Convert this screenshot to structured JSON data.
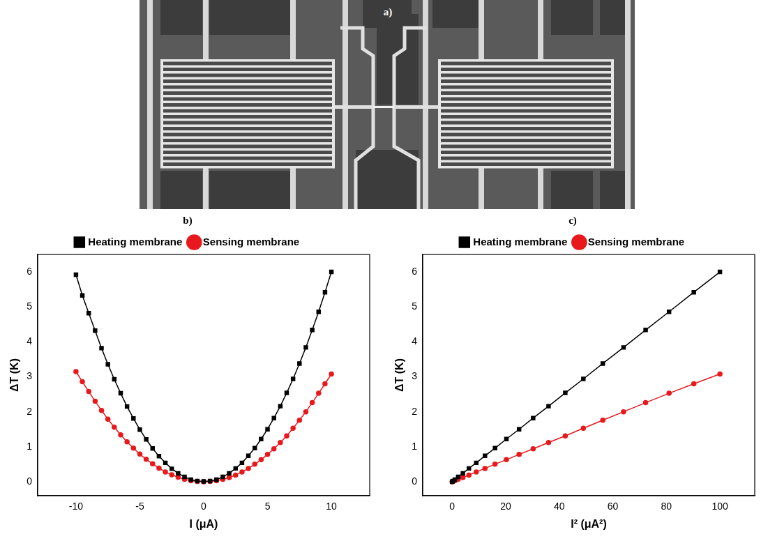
{
  "image": {
    "label": "a)"
  },
  "chart_data": [
    {
      "type": "line",
      "title": "b)",
      "x_label": "I (μA)",
      "y_label": "ΔT (K)",
      "x": [
        -10,
        -9.5,
        -9,
        -8.5,
        -8,
        -7.5,
        -7,
        -6.5,
        -6,
        -5.5,
        -5,
        -4.5,
        -4,
        -3.5,
        -3,
        -2.5,
        -2,
        -1.5,
        -1,
        -0.5,
        0,
        0.5,
        1,
        1.5,
        2,
        2.5,
        3,
        3.5,
        4,
        4.5,
        5,
        5.5,
        6,
        6.5,
        7,
        7.5,
        8,
        8.5,
        9,
        9.5,
        10
      ],
      "series": [
        {
          "name": "Heating membrane",
          "color": "#000000",
          "marker": "square",
          "line_style": "solid",
          "values": [
            5.92,
            5.33,
            4.82,
            4.32,
            3.82,
            3.36,
            2.93,
            2.53,
            2.15,
            1.81,
            1.49,
            1.21,
            0.95,
            0.73,
            0.54,
            0.37,
            0.24,
            0.14,
            0.06,
            0.02,
            0.01,
            0.02,
            0.06,
            0.14,
            0.24,
            0.38,
            0.54,
            0.74,
            0.96,
            1.22,
            1.5,
            1.82,
            2.16,
            2.54,
            2.94,
            3.38,
            3.84,
            4.34,
            4.86,
            5.42,
            6.0
          ]
        },
        {
          "name": "Sensing membrane",
          "color": "#e8191c",
          "marker": "circle",
          "line_style": "solid",
          "values": [
            3.15,
            2.86,
            2.58,
            2.3,
            2.04,
            1.79,
            1.56,
            1.34,
            1.14,
            0.96,
            0.79,
            0.64,
            0.51,
            0.39,
            0.28,
            0.2,
            0.13,
            0.07,
            0.03,
            0.01,
            0.0,
            0.01,
            0.03,
            0.07,
            0.12,
            0.19,
            0.28,
            0.38,
            0.5,
            0.63,
            0.78,
            0.94,
            1.12,
            1.31,
            1.53,
            1.76,
            2.0,
            2.26,
            2.53,
            2.8,
            3.08
          ]
        }
      ],
      "xlim": [
        -13,
        13
      ],
      "xticks": [
        -10,
        -5,
        0,
        5,
        10
      ],
      "ylim": [
        -0.4,
        6.5
      ],
      "yticks": [
        0,
        1,
        2,
        3,
        4,
        5,
        6
      ],
      "legend": "top",
      "grid": false
    },
    {
      "type": "line",
      "title": "c)",
      "x_label": "I² (μA²)",
      "y_label": "ΔT (K)",
      "x": [
        0,
        0.25,
        1,
        2.25,
        4,
        6.25,
        9,
        12.25,
        16,
        20.25,
        25,
        30.25,
        36,
        42.25,
        49,
        56.25,
        64,
        72.25,
        81,
        90.25,
        100
      ],
      "series": [
        {
          "name": "Heating membrane",
          "color": "#000000",
          "marker": "square",
          "line_style": "solid",
          "values": [
            0,
            0.02,
            0.06,
            0.14,
            0.24,
            0.38,
            0.54,
            0.74,
            0.96,
            1.22,
            1.5,
            1.82,
            2.16,
            2.54,
            2.94,
            3.38,
            3.84,
            4.34,
            4.86,
            5.42,
            6.0
          ]
        },
        {
          "name": "Sensing membrane",
          "color": "#e8191c",
          "marker": "circle",
          "line_style": "solid",
          "values": [
            0,
            0.01,
            0.03,
            0.07,
            0.12,
            0.19,
            0.28,
            0.38,
            0.5,
            0.63,
            0.78,
            0.94,
            1.12,
            1.31,
            1.53,
            1.76,
            2.0,
            2.26,
            2.53,
            2.8,
            3.08
          ]
        }
      ],
      "xlim": [
        -11,
        113
      ],
      "xticks": [
        0,
        20,
        40,
        60,
        80,
        100
      ],
      "ylim": [
        -0.4,
        6.5
      ],
      "yticks": [
        0,
        1,
        2,
        3,
        4,
        5,
        6
      ],
      "legend": "top",
      "grid": false
    }
  ]
}
